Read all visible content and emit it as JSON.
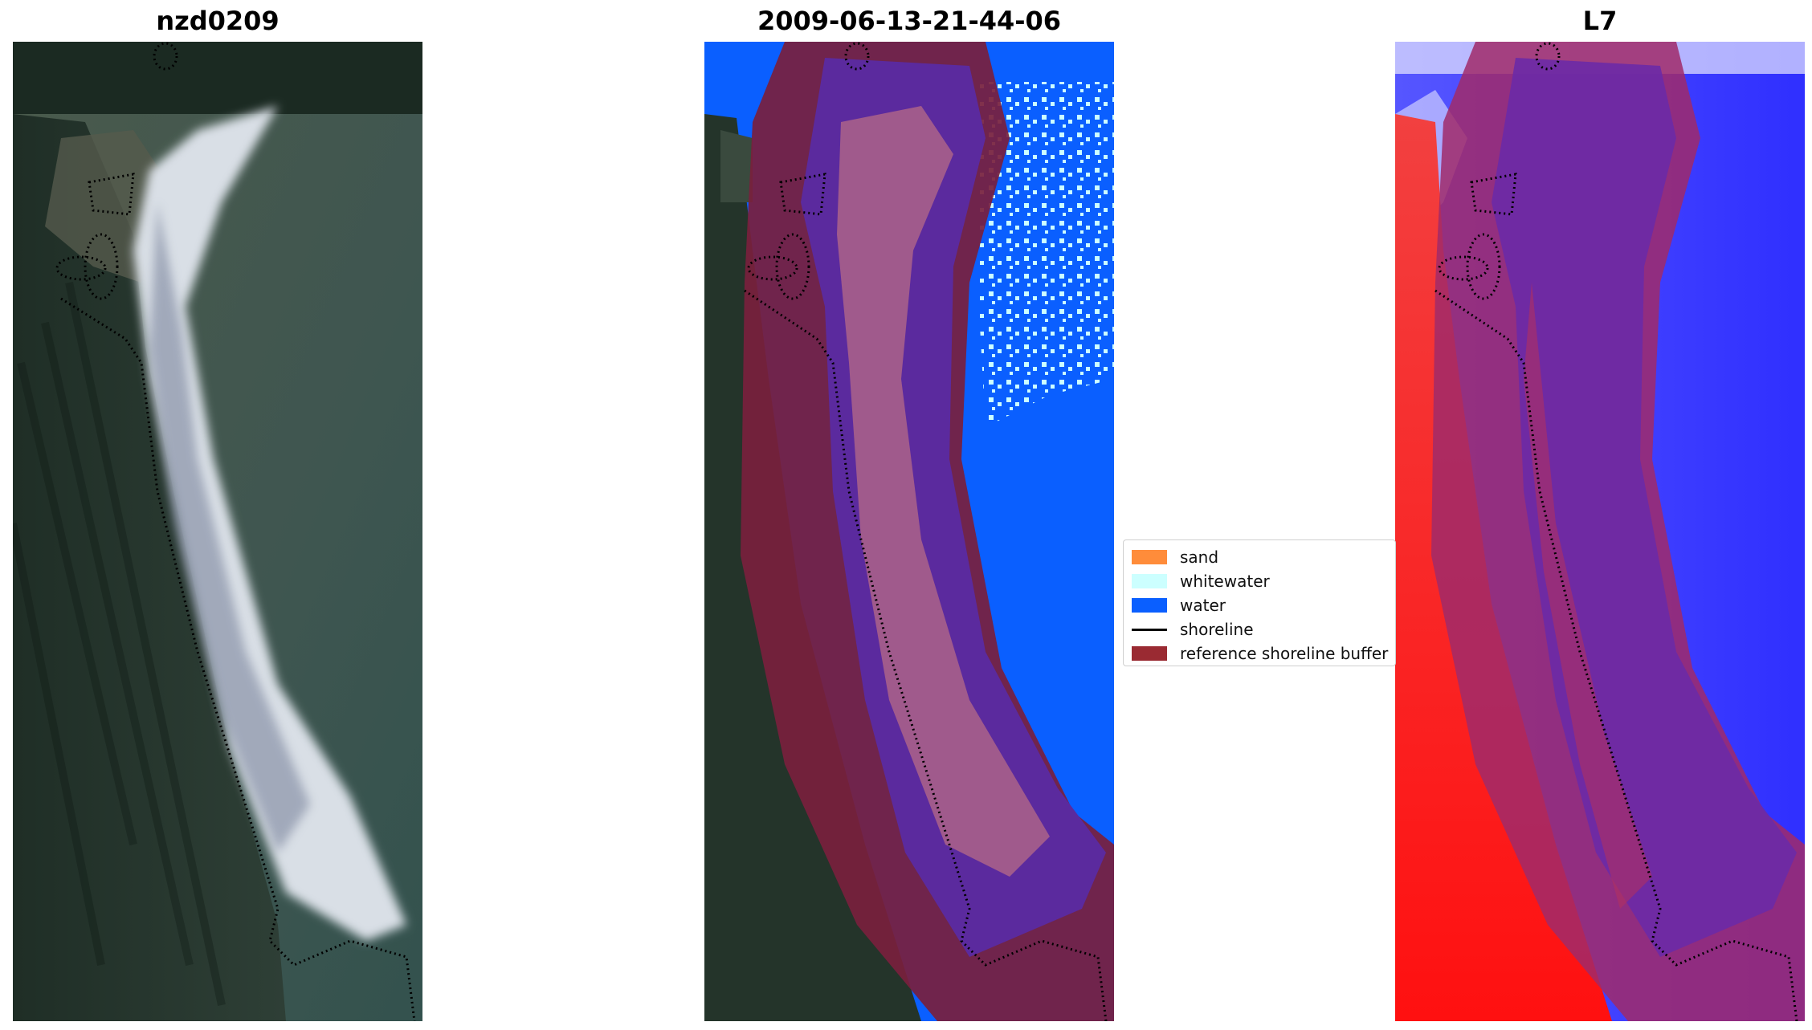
{
  "panels": [
    {
      "title": "nzd0209"
    },
    {
      "title": "2009-06-13-21-44-06"
    },
    {
      "title": "L7"
    }
  ],
  "legend": {
    "items": [
      {
        "label": "sand",
        "color": "#ff8c3a",
        "kind": "patch"
      },
      {
        "label": "whitewater",
        "color": "#ccffff",
        "kind": "patch"
      },
      {
        "label": "water",
        "color": "#0a5fff",
        "kind": "patch"
      },
      {
        "label": "shoreline",
        "color": "#000000",
        "kind": "line"
      },
      {
        "label": "reference shoreline buffer",
        "color": "#9a2a32",
        "kind": "patch"
      }
    ]
  },
  "colors": {
    "vegetation_dark": "#1c2b22",
    "vegetation_mid": "#3a4a3e",
    "sea_green": "#4b5e55",
    "surf_white": "#dde3ea",
    "buffer_purple": "#5b2a9e",
    "buffer_maroon": "#7a1f3d",
    "sand_mauve": "#a05a8c",
    "water_blue": "#0a5fff",
    "index_red": "#f01818",
    "index_blue": "#3a3aff"
  }
}
